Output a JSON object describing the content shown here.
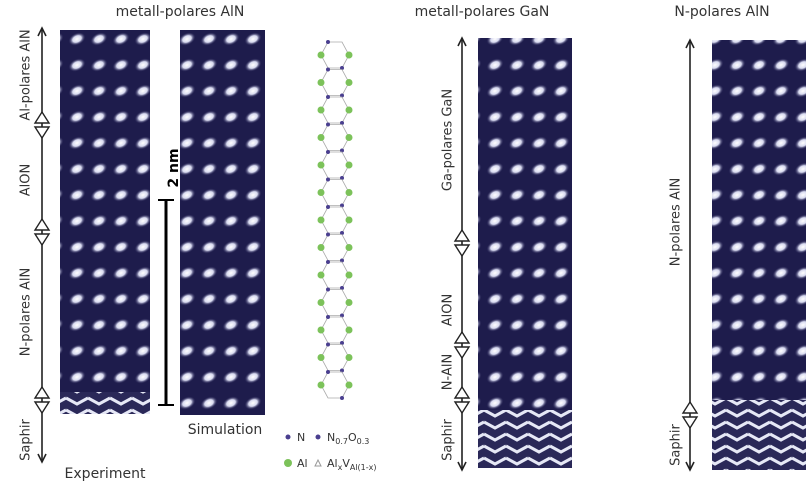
{
  "panels": [
    {
      "title": "metall-polares AlN",
      "regions": [
        {
          "label": "Al-polares AlN"
        },
        {
          "label": "AlON"
        },
        {
          "label": "N-polares AlN"
        },
        {
          "label": "Saphir"
        }
      ],
      "captions": [
        "Experiment",
        "Simulation"
      ],
      "scale_bar": "2 nm",
      "legend": [
        {
          "parts": [
            {
              "text": "N"
            }
          ]
        },
        {
          "parts": [
            {
              "text": "N"
            },
            {
              "text": "0.7",
              "sub": true
            },
            {
              "text": "O"
            },
            {
              "text": "0.3",
              "sub": true
            }
          ]
        },
        {
          "parts": [
            {
              "text": "Al"
            }
          ]
        },
        {
          "parts": [
            {
              "text": "Al"
            },
            {
              "text": "x",
              "sub": true
            },
            {
              "text": "V"
            },
            {
              "text": "Al(1-x)",
              "sub": true
            }
          ]
        }
      ]
    },
    {
      "title": "metall-polares GaN",
      "regions": [
        {
          "label": "Ga-polares GaN"
        },
        {
          "label": "AlON"
        },
        {
          "label": "N-AlN"
        },
        {
          "label": "Saphir"
        }
      ]
    },
    {
      "title": "N-polares AlN",
      "regions": [
        {
          "label": "N-polares AlN"
        },
        {
          "label": "Saphir"
        }
      ]
    }
  ]
}
